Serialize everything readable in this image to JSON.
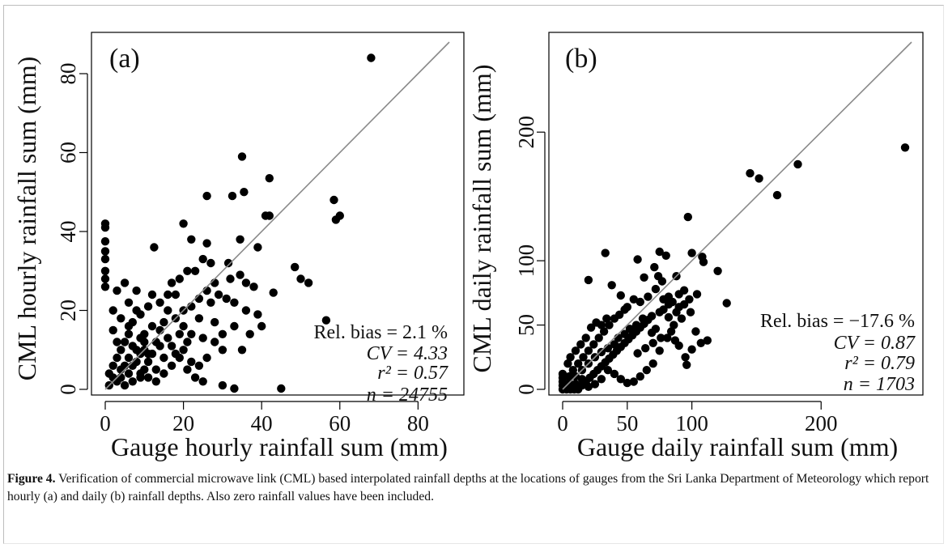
{
  "chart_data": [
    {
      "type": "scatter",
      "panel_label": "(a)",
      "xlabel": "Gauge hourly rainfall sum (mm)",
      "ylabel": "CML hourly rainfall sum (mm)",
      "xlim": [
        0,
        88
      ],
      "ylim": [
        0,
        88
      ],
      "xticks": [
        0,
        20,
        40,
        60,
        80
      ],
      "yticks": [
        0,
        20,
        40,
        60,
        80
      ],
      "reference_line": "1:1",
      "stats": {
        "rel_bias": "Rel. bias = 2.1 %",
        "cv": "CV = 4.33",
        "r2": "r² = 0.57",
        "n": "n = 24755"
      },
      "points": [
        [
          68,
          84
        ],
        [
          35,
          59
        ],
        [
          42,
          53.5
        ],
        [
          41,
          44
        ],
        [
          42,
          44
        ],
        [
          60,
          44
        ],
        [
          59,
          43
        ],
        [
          58.5,
          48
        ],
        [
          35.5,
          50
        ],
        [
          32.5,
          49
        ],
        [
          26,
          49
        ],
        [
          20,
          42
        ],
        [
          0,
          42
        ],
        [
          0,
          41
        ],
        [
          0,
          37.5
        ],
        [
          0,
          35
        ],
        [
          0,
          33
        ],
        [
          0,
          30
        ],
        [
          0,
          28
        ],
        [
          0,
          26
        ],
        [
          12.5,
          36
        ],
        [
          26,
          37
        ],
        [
          22,
          38
        ],
        [
          34.5,
          38
        ],
        [
          39,
          36
        ],
        [
          48.5,
          31
        ],
        [
          50,
          28
        ],
        [
          52,
          27
        ],
        [
          31.5,
          32
        ],
        [
          32,
          28
        ],
        [
          34.5,
          29
        ],
        [
          36,
          27
        ],
        [
          38,
          26
        ],
        [
          43,
          24.5
        ],
        [
          56.5,
          17.5
        ],
        [
          45,
          0.2
        ],
        [
          33,
          0.2
        ],
        [
          35,
          10
        ],
        [
          30,
          1
        ],
        [
          39,
          19
        ],
        [
          31,
          23
        ],
        [
          33,
          22
        ],
        [
          29,
          24
        ],
        [
          27,
          22
        ],
        [
          24,
          18
        ],
        [
          25,
          13
        ],
        [
          28,
          12
        ],
        [
          30,
          10
        ],
        [
          22,
          14
        ],
        [
          20,
          10
        ],
        [
          21,
          30
        ],
        [
          19,
          28
        ],
        [
          17,
          27
        ],
        [
          25,
          33
        ],
        [
          27,
          32
        ],
        [
          23,
          30
        ],
        [
          18,
          24
        ],
        [
          16,
          20
        ],
        [
          15,
          17
        ],
        [
          14,
          15
        ],
        [
          13,
          12
        ],
        [
          12,
          9
        ],
        [
          11,
          7
        ],
        [
          10,
          5
        ],
        [
          9,
          3
        ],
        [
          8,
          20
        ],
        [
          7,
          17
        ],
        [
          6,
          14
        ],
        [
          5,
          12
        ],
        [
          4,
          10
        ],
        [
          3,
          8
        ],
        [
          2,
          6
        ],
        [
          1,
          4
        ],
        [
          3,
          2
        ],
        [
          5,
          1
        ],
        [
          7,
          2
        ],
        [
          9,
          4
        ],
        [
          11,
          3
        ],
        [
          13,
          2
        ],
        [
          15,
          4
        ],
        [
          17,
          6
        ],
        [
          19,
          8
        ],
        [
          21,
          5
        ],
        [
          23,
          3
        ],
        [
          25,
          2
        ],
        [
          10,
          14
        ],
        [
          12,
          16
        ],
        [
          14,
          11
        ],
        [
          16,
          13
        ],
        [
          18,
          9
        ],
        [
          20,
          16
        ],
        [
          22,
          21
        ],
        [
          24,
          23
        ],
        [
          26,
          25
        ],
        [
          28,
          27
        ],
        [
          30,
          14
        ],
        [
          26,
          8
        ],
        [
          24,
          6
        ],
        [
          6,
          22
        ],
        [
          4,
          18
        ],
        [
          2,
          15
        ],
        [
          9,
          19
        ],
        [
          11,
          21
        ],
        [
          3,
          25
        ],
        [
          5,
          27
        ],
        [
          8,
          25
        ],
        [
          6,
          8
        ],
        [
          8,
          10
        ],
        [
          10,
          12
        ],
        [
          4,
          5
        ],
        [
          6,
          4
        ],
        [
          2,
          3
        ],
        [
          1,
          1
        ],
        [
          14,
          22
        ],
        [
          16,
          24
        ],
        [
          18,
          18
        ],
        [
          20,
          20
        ],
        [
          12,
          24
        ],
        [
          7,
          11
        ],
        [
          9,
          13
        ],
        [
          15,
          8
        ],
        [
          17,
          11
        ],
        [
          19,
          14
        ],
        [
          21,
          12
        ],
        [
          22,
          7
        ],
        [
          13,
          5
        ],
        [
          11,
          9
        ],
        [
          33,
          16
        ],
        [
          37,
          14
        ],
        [
          28,
          17
        ],
        [
          36,
          20
        ],
        [
          40,
          16
        ],
        [
          2,
          20
        ],
        [
          3,
          12
        ],
        [
          4,
          3
        ],
        [
          5,
          6
        ],
        [
          6,
          16
        ],
        [
          7,
          6
        ],
        [
          8,
          7
        ],
        [
          9,
          9
        ],
        [
          10,
          10
        ]
      ]
    },
    {
      "type": "scatter",
      "panel_label": "(b)",
      "xlabel": "Gauge daily rainfall sum (mm)",
      "ylabel": "CML daily rainfall sum (mm)",
      "xlim": [
        0,
        270
      ],
      "ylim": [
        0,
        270
      ],
      "xticks": [
        0,
        50,
        100,
        200
      ],
      "yticks": [
        0,
        50,
        100,
        200
      ],
      "reference_line": "1:1",
      "stats": {
        "rel_bias": "Rel. bias = −17.6 %",
        "cv": "CV = 0.87",
        "r2": "r² = 0.79",
        "n": "n = 1703"
      },
      "points": [
        [
          265,
          188
        ],
        [
          182,
          175
        ],
        [
          145,
          168
        ],
        [
          152,
          164
        ],
        [
          166,
          151
        ],
        [
          97,
          134
        ],
        [
          75,
          107
        ],
        [
          100,
          106
        ],
        [
          108,
          103
        ],
        [
          109,
          99
        ],
        [
          80,
          104
        ],
        [
          33,
          106
        ],
        [
          20,
          85
        ],
        [
          38,
          81
        ],
        [
          45,
          73
        ],
        [
          58,
          101
        ],
        [
          63,
          87
        ],
        [
          74,
          88
        ],
        [
          77,
          84
        ],
        [
          71,
          95
        ],
        [
          88,
          88
        ],
        [
          90,
          74
        ],
        [
          94,
          77
        ],
        [
          82,
          72
        ],
        [
          120,
          92
        ],
        [
          127,
          67
        ],
        [
          104,
          74
        ],
        [
          99,
          60
        ],
        [
          92,
          55
        ],
        [
          86,
          50
        ],
        [
          82,
          66
        ],
        [
          69,
          57
        ],
        [
          62,
          55
        ],
        [
          57,
          50
        ],
        [
          52,
          47
        ],
        [
          48,
          43
        ],
        [
          43,
          40
        ],
        [
          40,
          35
        ],
        [
          35,
          32
        ],
        [
          30,
          29
        ],
        [
          25,
          25
        ],
        [
          20,
          20
        ],
        [
          15,
          15
        ],
        [
          10,
          10
        ],
        [
          5,
          5
        ],
        [
          2,
          2
        ],
        [
          0,
          0
        ],
        [
          0,
          3
        ],
        [
          0,
          6
        ],
        [
          0,
          9
        ],
        [
          0,
          12
        ],
        [
          3,
          0
        ],
        [
          6,
          0
        ],
        [
          9,
          0
        ],
        [
          12,
          0
        ],
        [
          15,
          3
        ],
        [
          18,
          6
        ],
        [
          21,
          9
        ],
        [
          24,
          12
        ],
        [
          27,
          15
        ],
        [
          30,
          18
        ],
        [
          33,
          21
        ],
        [
          36,
          24
        ],
        [
          39,
          27
        ],
        [
          42,
          30
        ],
        [
          45,
          33
        ],
        [
          48,
          36
        ],
        [
          51,
          39
        ],
        [
          54,
          42
        ],
        [
          57,
          45
        ],
        [
          60,
          48
        ],
        [
          63,
          51
        ],
        [
          66,
          54
        ],
        [
          69,
          44
        ],
        [
          72,
          47
        ],
        [
          75,
          60
        ],
        [
          78,
          62
        ],
        [
          81,
          40
        ],
        [
          84,
          45
        ],
        [
          87,
          38
        ],
        [
          90,
          34
        ],
        [
          95,
          25
        ],
        [
          100,
          31
        ],
        [
          103,
          45
        ],
        [
          107,
          36
        ],
        [
          112,
          38
        ],
        [
          96,
          19
        ],
        [
          75,
          30
        ],
        [
          70,
          20
        ],
        [
          65,
          15
        ],
        [
          60,
          10
        ],
        [
          55,
          6
        ],
        [
          50,
          5
        ],
        [
          45,
          8
        ],
        [
          40,
          12
        ],
        [
          35,
          15
        ],
        [
          30,
          8
        ],
        [
          25,
          4
        ],
        [
          20,
          2
        ],
        [
          15,
          8
        ],
        [
          10,
          4
        ],
        [
          5,
          10
        ],
        [
          8,
          15
        ],
        [
          12,
          20
        ],
        [
          16,
          25
        ],
        [
          20,
          30
        ],
        [
          24,
          35
        ],
        [
          28,
          40
        ],
        [
          32,
          45
        ],
        [
          36,
          50
        ],
        [
          40,
          55
        ],
        [
          44,
          58
        ],
        [
          48,
          62
        ],
        [
          22,
          48
        ],
        [
          26,
          52
        ],
        [
          30,
          50
        ],
        [
          34,
          55
        ],
        [
          18,
          40
        ],
        [
          14,
          35
        ],
        [
          10,
          30
        ],
        [
          6,
          25
        ],
        [
          4,
          20
        ],
        [
          55,
          70
        ],
        [
          60,
          68
        ],
        [
          50,
          64
        ],
        [
          66,
          72
        ],
        [
          72,
          78
        ],
        [
          78,
          70
        ],
        [
          85,
          68
        ],
        [
          90,
          64
        ],
        [
          58,
          28
        ],
        [
          64,
          32
        ],
        [
          70,
          36
        ],
        [
          76,
          40
        ],
        [
          82,
          56
        ],
        [
          88,
          60
        ],
        [
          94,
          66
        ],
        [
          98,
          70
        ]
      ]
    }
  ],
  "caption": {
    "label": "Figure 4.",
    "text": " Verification of commercial microwave link (CML) based interpolated rainfall depths at the locations of gauges from the Sri Lanka Department of Meteorology which report hourly (a) and daily (b) rainfall depths. Also zero rainfall values have been included."
  }
}
